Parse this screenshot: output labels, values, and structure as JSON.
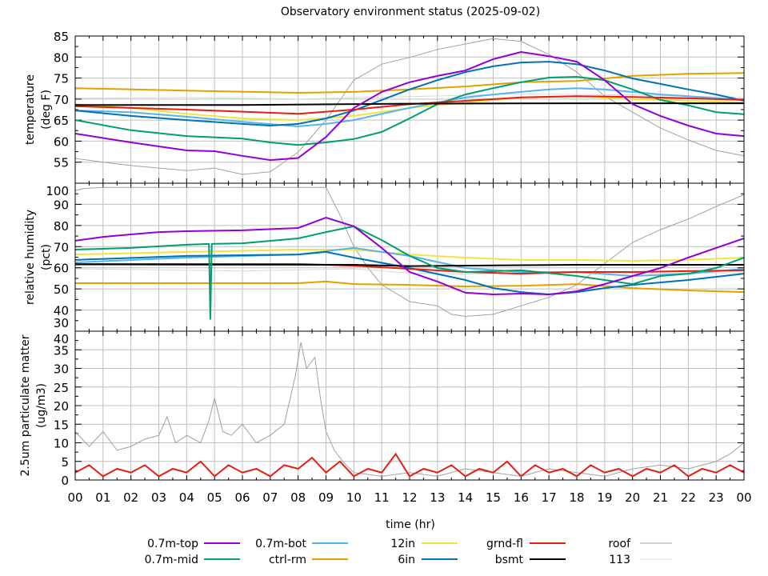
{
  "chart_data": [
    {
      "type": "line",
      "title": "Observatory environment status (2025-09-02)",
      "xlabel": "time (hr)",
      "ylabel": [
        "temperature",
        "(deg F)"
      ],
      "ylim": [
        50,
        85
      ],
      "yticks": [
        55,
        60,
        65,
        70,
        75,
        80,
        85
      ],
      "ytick_labels": [
        "55",
        "60",
        "65",
        "70",
        "75",
        "80",
        "85"
      ],
      "grid": true,
      "series": [
        {
          "name": "roof",
          "color": "#a0a0a0",
          "x": [
            0,
            1,
            2,
            3,
            4,
            5,
            6,
            7,
            8,
            9,
            10,
            11,
            12,
            13,
            14,
            15,
            16,
            17,
            18,
            19,
            20,
            21,
            22,
            23,
            24
          ],
          "values": [
            55.9,
            55.0,
            54.2,
            53.6,
            53.0,
            53.6,
            52.1,
            52.7,
            57.4,
            65.0,
            74.5,
            78.3,
            79.9,
            81.8,
            83.1,
            84.4,
            83.7,
            80.6,
            76.4,
            70.7,
            66.9,
            63.1,
            60.3,
            57.8,
            56.5
          ]
        },
        {
          "name": "113",
          "color": "#d8d8d8",
          "x": [
            0,
            4,
            8,
            12,
            16,
            20,
            24
          ],
          "values": [
            70.2,
            70.4,
            70.0,
            70.6,
            71.2,
            71.0,
            70.4
          ]
        },
        {
          "name": "ctrl-rm",
          "color": "#e69f00",
          "x": [
            0,
            4,
            8,
            10,
            12,
            14,
            16,
            18,
            20,
            22,
            24
          ],
          "values": [
            72.6,
            72.0,
            71.5,
            71.7,
            72.3,
            73.0,
            74.0,
            74.3,
            75.5,
            76.0,
            76.2
          ]
        },
        {
          "name": "12in",
          "color": "#f0e442",
          "x": [
            0,
            2,
            4,
            6,
            8,
            10,
            12,
            14,
            16,
            18,
            20,
            22,
            24
          ],
          "values": [
            68.8,
            67.9,
            66.5,
            65.4,
            65.0,
            66.0,
            67.9,
            69.2,
            70.4,
            70.7,
            70.0,
            69.6,
            69.2
          ]
        },
        {
          "name": "0.7m-bot",
          "color": "#56b4e9",
          "x": [
            0,
            2,
            4,
            6,
            8,
            9,
            10,
            11,
            12,
            13,
            14,
            15,
            16,
            17,
            18,
            19,
            20,
            21,
            22,
            23,
            24
          ],
          "values": [
            67.3,
            66.9,
            65.8,
            64.6,
            63.5,
            64.1,
            65.0,
            66.5,
            67.9,
            69.2,
            70.4,
            71.1,
            71.7,
            72.3,
            72.6,
            72.3,
            71.7,
            71.1,
            70.7,
            70.2,
            69.8
          ]
        },
        {
          "name": "0.7m-mid",
          "color": "#009e73",
          "x": [
            0,
            2,
            4,
            6,
            7,
            8,
            9,
            10,
            11,
            12,
            13,
            14,
            15,
            16,
            17,
            18,
            19,
            20,
            21,
            22,
            23,
            24
          ],
          "values": [
            65.0,
            62.6,
            61.2,
            60.6,
            59.7,
            59.1,
            59.7,
            60.5,
            62.2,
            65.4,
            68.8,
            71.1,
            72.6,
            74.0,
            75.1,
            75.3,
            74.5,
            72.3,
            69.8,
            68.5,
            66.9,
            66.4
          ]
        },
        {
          "name": "6in",
          "color": "#0072b2",
          "x": [
            0,
            2,
            4,
            6,
            7,
            8,
            9,
            10,
            11,
            12,
            13,
            14,
            15,
            16,
            17,
            18,
            19,
            20,
            21,
            22,
            23,
            24
          ],
          "values": [
            67.3,
            66.0,
            65.0,
            64.1,
            63.7,
            64.1,
            65.4,
            67.3,
            69.8,
            72.3,
            74.5,
            76.4,
            77.8,
            78.7,
            78.9,
            78.3,
            76.8,
            74.9,
            73.6,
            72.3,
            71.1,
            69.6
          ]
        },
        {
          "name": "grnd-fl",
          "color": "#e51e10",
          "x": [
            0,
            4,
            8,
            10,
            12,
            14,
            16,
            18,
            20,
            22,
            24
          ],
          "values": [
            68.3,
            67.5,
            66.5,
            67.5,
            68.8,
            69.6,
            70.4,
            70.7,
            70.5,
            70.2,
            69.8
          ]
        },
        {
          "name": "bsmt",
          "color": "#000000",
          "x": [
            0,
            6,
            12,
            18,
            24
          ],
          "values": [
            68.6,
            68.6,
            68.9,
            69.0,
            69.0
          ]
        },
        {
          "name": "0.7m-top",
          "color": "#9400d3",
          "x": [
            0,
            2,
            4,
            5,
            6,
            7,
            8,
            9,
            10,
            11,
            12,
            13,
            14,
            15,
            16,
            17,
            18,
            19,
            20,
            21,
            22,
            23,
            24
          ],
          "values": [
            61.8,
            59.7,
            57.8,
            57.6,
            56.5,
            55.5,
            56.0,
            61.0,
            67.9,
            71.7,
            74.0,
            75.5,
            76.8,
            79.5,
            81.2,
            80.2,
            78.9,
            74.5,
            68.8,
            66.0,
            63.7,
            61.8,
            61.2
          ]
        }
      ]
    },
    {
      "type": "line",
      "ylabel": [
        "relative humidity",
        "(pct)"
      ],
      "ylim": [
        30,
        100
      ],
      "yticks": [
        30,
        40,
        50,
        60,
        70,
        80,
        90,
        100
      ],
      "ytick_labels": [
        "30",
        "40",
        "50",
        "60",
        "70",
        "80",
        "90",
        "100"
      ],
      "grid": true,
      "series": [
        {
          "name": "roof",
          "color": "#a0a0a0",
          "x": [
            0,
            0.3,
            1,
            9,
            9.5,
            10,
            10.5,
            11,
            12,
            13,
            13.5,
            14,
            15,
            16,
            17,
            18,
            19,
            20,
            21,
            22,
            23,
            24
          ],
          "values": [
            96.5,
            97.5,
            98,
            98,
            85,
            70,
            60,
            52,
            44,
            42,
            38,
            37,
            38,
            42,
            46,
            52,
            62,
            72,
            78,
            83,
            89,
            94.5
          ]
        },
        {
          "name": "113",
          "color": "#d8d8d8",
          "x": [
            0,
            6,
            10,
            12,
            14,
            18,
            20,
            24
          ],
          "values": [
            59.5,
            58.5,
            59.5,
            57.5,
            57.0,
            58.0,
            57.5,
            57.5
          ]
        },
        {
          "name": "ctrl-rm",
          "color": "#e69f00",
          "x": [
            0,
            8,
            9,
            10,
            12,
            14,
            16,
            18,
            20,
            22,
            24
          ],
          "values": [
            52.7,
            52.7,
            53.5,
            52.3,
            51.9,
            51.2,
            51.5,
            52.3,
            50.4,
            49.3,
            48.5
          ]
        },
        {
          "name": "12in",
          "color": "#f0e442",
          "x": [
            0,
            4,
            8,
            10,
            12,
            14,
            16,
            18,
            20,
            22,
            24
          ],
          "values": [
            66.3,
            67.5,
            68.6,
            68.6,
            66.3,
            64.8,
            63.7,
            63.7,
            63.3,
            63.7,
            64.8
          ]
        },
        {
          "name": "0.7m-bot",
          "color": "#56b4e9",
          "x": [
            0,
            4,
            8,
            10,
            12,
            14,
            16,
            18,
            20,
            22,
            24
          ],
          "values": [
            62.5,
            64.8,
            66.3,
            69.4,
            65.6,
            59.9,
            58.0,
            58.0,
            56.1,
            57.2,
            59.5
          ]
        },
        {
          "name": "6in",
          "color": "#0072b2",
          "x": [
            0,
            4,
            8,
            9,
            10,
            12,
            14,
            15,
            16,
            17,
            18,
            19,
            20,
            22,
            24
          ],
          "values": [
            63.7,
            65.6,
            66.3,
            67.5,
            64.8,
            59.9,
            54.2,
            50.4,
            48.5,
            47.4,
            48.5,
            50.4,
            51.9,
            54.2,
            57.2
          ]
        },
        {
          "name": "grnd-fl",
          "color": "#e51e10",
          "x": [
            0,
            6,
            8,
            10,
            12,
            14,
            16,
            18,
            20,
            22,
            24
          ],
          "values": [
            61.8,
            61.8,
            61.8,
            61.0,
            59.5,
            58.0,
            57.2,
            58.0,
            58.0,
            58.4,
            58.8
          ]
        },
        {
          "name": "bsmt",
          "color": "#000000",
          "x": [
            0,
            10,
            12,
            18,
            24
          ],
          "values": [
            61.6,
            61.4,
            60.8,
            61.4,
            61.4
          ]
        },
        {
          "name": "0.7m-mid",
          "color": "#009e73",
          "x": [
            0,
            2,
            4,
            4.8,
            4.85,
            4.9,
            6,
            8,
            9,
            10,
            11,
            12,
            13,
            14,
            16,
            18,
            19,
            20,
            21,
            22,
            23,
            24
          ],
          "values": [
            68.6,
            69.4,
            70.9,
            71.3,
            35.5,
            71.3,
            71.6,
            73.9,
            76.9,
            79.6,
            73.1,
            65.6,
            59.9,
            58.0,
            58.8,
            56.1,
            54.2,
            52.3,
            56.1,
            57.2,
            59.9,
            64.8
          ]
        },
        {
          "name": "0.7m-top",
          "color": "#9400d3",
          "x": [
            0,
            1,
            2,
            3,
            4,
            6,
            8,
            9,
            10,
            11,
            12,
            13,
            14,
            15,
            16,
            17,
            18,
            19,
            20,
            21,
            22,
            23,
            24
          ],
          "values": [
            72.8,
            74.6,
            75.8,
            76.9,
            77.3,
            77.7,
            78.8,
            83.7,
            79.6,
            69.4,
            58.0,
            53.5,
            48.2,
            47.4,
            47.8,
            47.4,
            48.9,
            52.3,
            56.1,
            59.9,
            64.8,
            69.4,
            73.9
          ]
        }
      ]
    },
    {
      "type": "line",
      "ylabel": [
        "2.5um particulate matter",
        "(ug/m3)"
      ],
      "ylim": [
        0,
        40
      ],
      "yticks": [
        0,
        5,
        10,
        15,
        20,
        25,
        30,
        35,
        40
      ],
      "ytick_labels": [
        "0",
        "5",
        "10",
        "15",
        "20",
        "25",
        "30",
        "35",
        "40"
      ],
      "grid": true,
      "series": [
        {
          "name": "roof",
          "color": "#a0a0a0",
          "x": [
            0,
            0.5,
            1,
            1.5,
            2,
            2.5,
            3,
            3.3,
            3.6,
            4,
            4.5,
            4.8,
            5,
            5.3,
            5.6,
            6,
            6.5,
            7,
            7.5,
            7.9,
            8.1,
            8.3,
            8.6,
            8.8,
            9,
            9.3,
            9.6,
            10,
            11,
            12,
            13,
            14,
            15,
            16,
            17,
            18,
            19,
            20,
            21,
            22,
            23,
            23.5,
            24
          ],
          "values": [
            13,
            9,
            13,
            8,
            9,
            11,
            12,
            17,
            10,
            12,
            10,
            16,
            22,
            13,
            12,
            15,
            10,
            12,
            15,
            28,
            37,
            30,
            33,
            22,
            13,
            8,
            5,
            2,
            1,
            2,
            1,
            3,
            2,
            1,
            3,
            2,
            1,
            3,
            4,
            3,
            5,
            7,
            10
          ]
        },
        {
          "name": "grnd-fl",
          "color": "#e51e10",
          "x": [
            0,
            0.5,
            1,
            1.5,
            2,
            2.5,
            3,
            3.5,
            4,
            4.5,
            5,
            5.5,
            6,
            6.5,
            7,
            7.5,
            8,
            8.5,
            9,
            9.5,
            10,
            10.5,
            11,
            11.5,
            12,
            12.5,
            13,
            13.5,
            14,
            14.5,
            15,
            15.5,
            16,
            16.5,
            17,
            17.5,
            18,
            18.5,
            19,
            19.5,
            20,
            20.5,
            21,
            21.5,
            22,
            22.5,
            23,
            23.5,
            24
          ],
          "values": [
            2,
            4,
            1,
            3,
            2,
            4,
            1,
            3,
            2,
            5,
            1,
            4,
            2,
            3,
            1,
            4,
            3,
            6,
            2,
            5,
            1,
            3,
            2,
            7,
            1,
            3,
            2,
            4,
            1,
            3,
            2,
            5,
            1,
            4,
            2,
            3,
            1,
            4,
            2,
            3,
            1,
            3,
            2,
            4,
            1,
            3,
            2,
            4,
            2
          ]
        }
      ]
    }
  ],
  "xaxis": {
    "xlim": [
      0,
      24
    ],
    "tick_labels": [
      "00",
      "01",
      "02",
      "03",
      "04",
      "05",
      "06",
      "07",
      "08",
      "09",
      "10",
      "11",
      "12",
      "13",
      "14",
      "15",
      "16",
      "17",
      "18",
      "19",
      "20",
      "21",
      "22",
      "23",
      "00"
    ]
  },
  "legend": {
    "placement": "bottom",
    "entries": [
      {
        "label": "0.7m-top",
        "color": "#9400d3"
      },
      {
        "label": "0.7m-mid",
        "color": "#009e73"
      },
      {
        "label": "0.7m-bot",
        "color": "#56b4e9"
      },
      {
        "label": "ctrl-rm",
        "color": "#e69f00"
      },
      {
        "label": "12in",
        "color": "#f0e442"
      },
      {
        "label": "6in",
        "color": "#0072b2"
      },
      {
        "label": "grnd-fl",
        "color": "#e51e10"
      },
      {
        "label": "bsmt",
        "color": "#000000"
      },
      {
        "label": "roof",
        "color": "#a0a0a0"
      },
      {
        "label": "113",
        "color": "#d8d8d8"
      }
    ]
  }
}
